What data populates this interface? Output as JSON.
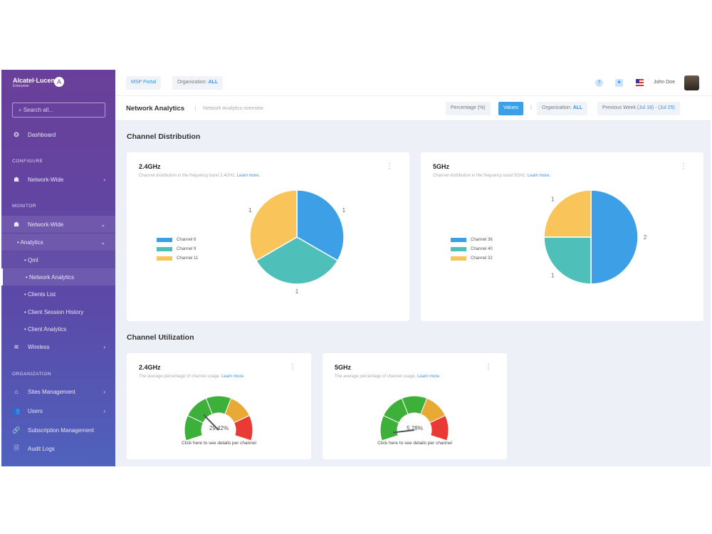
{
  "sidebar": {
    "brand": "Alcatel·Lucent",
    "brand_sub": "Enterprise",
    "search_placeholder": "Search all...",
    "dashboard": "Dashboard",
    "configure": "CONFIGURE",
    "config_network_wide": "Network-Wide",
    "monitor": "MONITOR",
    "monitor_network_wide": "Network-Wide",
    "analytics": "Analytics",
    "items": [
      "Qml",
      "Network Analytics",
      "Clients List",
      "Client Session History",
      "Client Analytics"
    ],
    "wireless": "Wireless",
    "organization": "ORGANIZATION",
    "sites": "Sites Management",
    "users": "Users",
    "subscription": "Subscription Management",
    "audit": "Audit Logs"
  },
  "topbar": {
    "msp": "MSP Portal",
    "org_label": "Organization:",
    "org_value": "ALL",
    "user": "John Doe"
  },
  "subbar": {
    "title": "Network Analytics",
    "breadcrumb": "Network Analytics overview",
    "percentage": "Percentage (%)",
    "values": "Values",
    "org_label": "Organization:",
    "org_value": "ALL",
    "period_label": "Previous Week",
    "period_value": "(Jul 18) - (Jul 25)"
  },
  "distribution": {
    "title": "Channel Distribution",
    "cards": [
      {
        "title": "2.4GHz",
        "desc": "Channel distribution in the frequency band 2.4GHz.",
        "link": "Learn more."
      },
      {
        "title": "5GHz",
        "desc": "Channel distribution in the frequency band 5GHz.",
        "link": "Learn more."
      }
    ]
  },
  "utilization": {
    "title": "Channel Utilization",
    "cards": [
      {
        "title": "2.4GHz",
        "desc": "The average percentage of channel usage.",
        "link": "Learn more.",
        "value": 29.42,
        "value_label": "29.42%",
        "footer": "Click here to see details per channel"
      },
      {
        "title": "5GHz",
        "desc": "The average percentage of channel usage.",
        "link": "Learn more.",
        "value": 5.28,
        "value_label": "5.28%",
        "footer": "Click here to see details per channel"
      }
    ],
    "gauge_colors": [
      "#3db03a",
      "#3db03a",
      "#3db03a",
      "#e8aa35",
      "#e93a35"
    ]
  },
  "chart_data": [
    {
      "type": "pie",
      "categories": [
        "Channel 6",
        "Channel 9",
        "Channel 11"
      ],
      "values": [
        1,
        1,
        1
      ],
      "colors": [
        "#3d9fe6",
        "#4fbfb9",
        "#f9c55a"
      ],
      "legend": "left"
    },
    {
      "type": "pie",
      "categories": [
        "Channel 36",
        "Channel 40",
        "Channel 32"
      ],
      "values": [
        2,
        1,
        1
      ],
      "colors": [
        "#3d9fe6",
        "#4fbfb9",
        "#f9c55a"
      ],
      "legend": "left"
    }
  ]
}
